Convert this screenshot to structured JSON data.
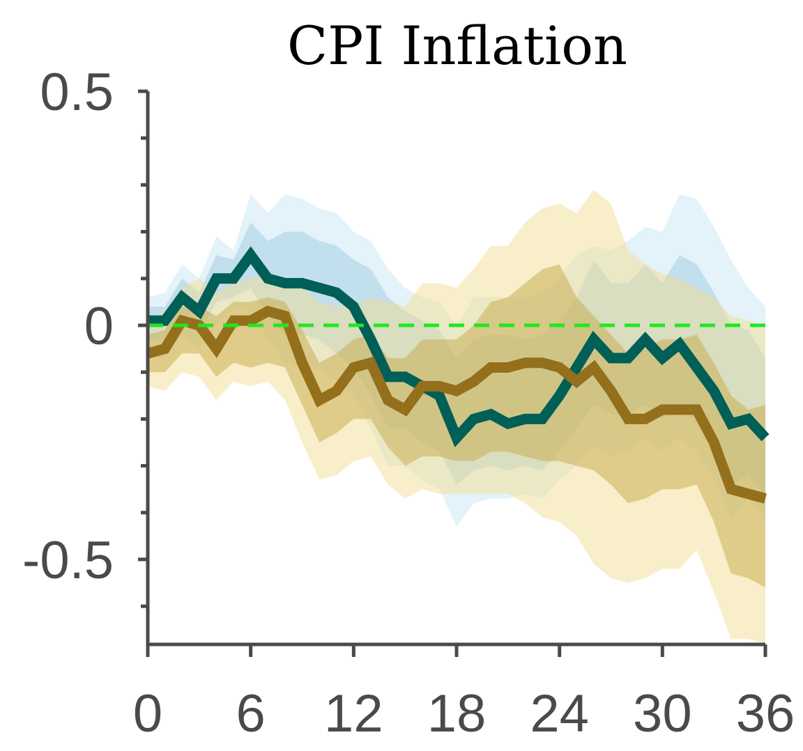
{
  "chart_data": {
    "type": "line",
    "title": "CPI Inflation",
    "xlabel": "",
    "ylabel": "",
    "xlim": [
      0,
      36
    ],
    "ylim": [
      -0.68,
      0.5
    ],
    "x_ticks": [
      0,
      6,
      12,
      18,
      24,
      30,
      36
    ],
    "x_tick_labels": [
      "0",
      "6",
      "12",
      "18",
      "24",
      "30",
      "36"
    ],
    "y_ticks": [
      0.5,
      0,
      -0.5
    ],
    "y_tick_labels": [
      "0.5",
      "0",
      "-0.5"
    ],
    "y_minor_ticks": [
      0.4,
      0.3,
      0.2,
      0.1,
      -0.1,
      -0.2,
      -0.3,
      -0.4,
      -0.6
    ],
    "grid": false,
    "legend": "none",
    "x": [
      0,
      1,
      2,
      3,
      4,
      5,
      6,
      7,
      8,
      9,
      10,
      11,
      12,
      13,
      14,
      15,
      16,
      17,
      18,
      19,
      20,
      21,
      22,
      23,
      24,
      25,
      26,
      27,
      28,
      29,
      30,
      31,
      32,
      33,
      34,
      35,
      36
    ],
    "series": [
      {
        "color": "#005f56",
        "values": [
          0.01,
          0.01,
          0.06,
          0.03,
          0.1,
          0.1,
          0.15,
          0.1,
          0.09,
          0.09,
          0.08,
          0.07,
          0.04,
          -0.03,
          -0.11,
          -0.11,
          -0.13,
          -0.15,
          -0.24,
          -0.2,
          -0.19,
          -0.21,
          -0.2,
          -0.2,
          -0.15,
          -0.09,
          -0.03,
          -0.07,
          -0.07,
          -0.03,
          -0.07,
          -0.04,
          -0.09,
          -0.14,
          -0.21,
          -0.2,
          -0.24
        ],
        "bands": [
          {
            "color": "#bfe1f0",
            "opacity": 0.42,
            "upper": [
              0.06,
              0.07,
              0.13,
              0.1,
              0.19,
              0.16,
              0.28,
              0.24,
              0.28,
              0.27,
              0.25,
              0.24,
              0.2,
              0.18,
              0.12,
              0.08,
              0.06,
              0.05,
              0.0,
              0.06,
              0.06,
              0.06,
              0.06,
              0.07,
              0.1,
              0.15,
              0.17,
              0.16,
              0.18,
              0.21,
              0.2,
              0.28,
              0.27,
              0.21,
              0.14,
              0.08,
              0.04
            ],
            "lower": [
              -0.07,
              -0.07,
              -0.02,
              -0.05,
              0.0,
              0.04,
              0.03,
              -0.03,
              -0.08,
              -0.09,
              -0.09,
              -0.12,
              -0.15,
              -0.22,
              -0.3,
              -0.3,
              -0.33,
              -0.35,
              -0.43,
              -0.38,
              -0.37,
              -0.37,
              -0.36,
              -0.37,
              -0.33,
              -0.3,
              -0.26,
              -0.28,
              -0.27,
              -0.24,
              -0.27,
              -0.24,
              -0.27,
              -0.33,
              -0.41,
              -0.37,
              -0.42
            ]
          },
          {
            "color": "#92c6dc",
            "opacity": 0.42,
            "upper": [
              0.04,
              0.04,
              0.1,
              0.07,
              0.15,
              0.14,
              0.22,
              0.18,
              0.2,
              0.2,
              0.18,
              0.17,
              0.14,
              0.12,
              0.06,
              0.03,
              0.01,
              -0.01,
              -0.07,
              -0.03,
              -0.02,
              -0.02,
              -0.03,
              -0.02,
              0.01,
              0.06,
              0.14,
              0.09,
              0.09,
              0.13,
              0.09,
              0.15,
              0.13,
              0.07,
              0.0,
              -0.01,
              -0.07
            ],
            "lower": [
              -0.03,
              -0.03,
              0.02,
              -0.02,
              0.05,
              0.06,
              0.08,
              0.02,
              -0.02,
              -0.02,
              -0.03,
              -0.06,
              -0.09,
              -0.15,
              -0.22,
              -0.22,
              -0.25,
              -0.27,
              -0.34,
              -0.31,
              -0.3,
              -0.31,
              -0.3,
              -0.31,
              -0.27,
              -0.22,
              -0.17,
              -0.19,
              -0.19,
              -0.17,
              -0.2,
              -0.18,
              -0.21,
              -0.26,
              -0.34,
              -0.32,
              -0.37
            ]
          }
        ]
      },
      {
        "color": "#946f1c",
        "values": [
          -0.06,
          -0.05,
          0.01,
          0.0,
          -0.05,
          0.01,
          0.01,
          0.03,
          0.02,
          -0.08,
          -0.16,
          -0.14,
          -0.09,
          -0.08,
          -0.16,
          -0.18,
          -0.13,
          -0.13,
          -0.14,
          -0.12,
          -0.09,
          -0.09,
          -0.08,
          -0.08,
          -0.09,
          -0.12,
          -0.09,
          -0.14,
          -0.2,
          -0.2,
          -0.18,
          -0.18,
          -0.18,
          -0.25,
          -0.35,
          -0.36,
          -0.37
        ],
        "bands": [
          {
            "color": "#f2dd94",
            "opacity": 0.5,
            "upper": [
              0.01,
              0.03,
              0.08,
              0.1,
              0.07,
              0.09,
              0.1,
              0.11,
              0.1,
              0.08,
              0.05,
              0.04,
              0.04,
              0.06,
              0.05,
              0.04,
              0.09,
              0.09,
              0.08,
              0.12,
              0.17,
              0.17,
              0.22,
              0.25,
              0.26,
              0.24,
              0.29,
              0.26,
              0.16,
              0.13,
              0.11,
              0.1,
              0.08,
              0.06,
              0.02,
              0.01,
              0.0
            ],
            "lower": [
              -0.13,
              -0.14,
              -0.1,
              -0.11,
              -0.16,
              -0.12,
              -0.13,
              -0.12,
              -0.16,
              -0.25,
              -0.33,
              -0.32,
              -0.29,
              -0.28,
              -0.34,
              -0.37,
              -0.35,
              -0.36,
              -0.36,
              -0.36,
              -0.36,
              -0.36,
              -0.38,
              -0.41,
              -0.42,
              -0.45,
              -0.51,
              -0.54,
              -0.55,
              -0.54,
              -0.52,
              -0.52,
              -0.48,
              -0.57,
              -0.67,
              -0.67,
              -0.68
            ]
          },
          {
            "color": "#c7a94a",
            "opacity": 0.5,
            "upper": [
              -0.02,
              -0.01,
              0.04,
              0.04,
              0.02,
              0.05,
              0.05,
              0.06,
              0.05,
              -0.01,
              -0.08,
              -0.06,
              -0.03,
              -0.02,
              -0.07,
              -0.07,
              -0.03,
              -0.03,
              -0.03,
              0.0,
              0.05,
              0.06,
              0.09,
              0.12,
              0.13,
              0.06,
              0.02,
              -0.02,
              -0.06,
              -0.05,
              -0.03,
              -0.03,
              -0.02,
              -0.08,
              -0.15,
              -0.18,
              -0.17
            ],
            "lower": [
              -0.1,
              -0.1,
              -0.06,
              -0.06,
              -0.11,
              -0.08,
              -0.09,
              -0.08,
              -0.09,
              -0.17,
              -0.25,
              -0.23,
              -0.2,
              -0.2,
              -0.26,
              -0.3,
              -0.28,
              -0.28,
              -0.29,
              -0.29,
              -0.27,
              -0.27,
              -0.28,
              -0.29,
              -0.29,
              -0.3,
              -0.31,
              -0.34,
              -0.38,
              -0.37,
              -0.35,
              -0.35,
              -0.34,
              -0.42,
              -0.53,
              -0.54,
              -0.56
            ]
          }
        ]
      }
    ],
    "reference_line": {
      "y": 0,
      "color": "#1ee91e",
      "style": "dashed"
    }
  }
}
